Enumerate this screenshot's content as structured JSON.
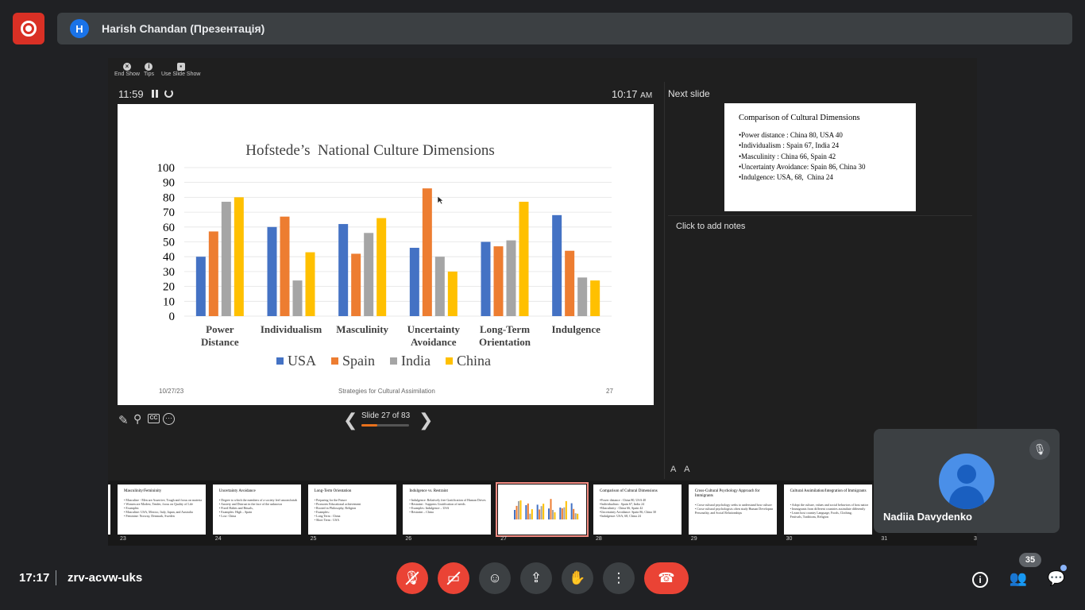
{
  "top_bar": {
    "presenter_initial": "H",
    "presenter_label": "Harish Chandan (Презентація)"
  },
  "presenter_view": {
    "tools": {
      "end_show": "End Show",
      "tips": "Tips",
      "use_slide_show": "Use Slide Show"
    },
    "timer": "11:59",
    "clock_time": "10:17",
    "clock_ampm": "AM",
    "next_slide_label": "Next slide",
    "notes_placeholder": "Click to add notes",
    "slide_counter": "Slide 27 of 83",
    "progress_fraction": 0.325,
    "font_controls": "A A"
  },
  "current_slide": {
    "footer_date": "10/27/23",
    "footer_center": "Strategies for Cultural Assimilation",
    "footer_page": "27"
  },
  "chart_data": {
    "type": "bar",
    "title": "Hofstede’s  National Culture Dimensions",
    "categories": [
      [
        "Power",
        "Distance"
      ],
      [
        "Individualism"
      ],
      [
        "Masculinity"
      ],
      [
        "Uncertainty",
        "Avoidance"
      ],
      [
        "Long-Term",
        "Orientation"
      ],
      [
        "Indulgence"
      ]
    ],
    "series": [
      {
        "name": "USA",
        "color": "#4472c4",
        "values": [
          40,
          60,
          62,
          46,
          50,
          68
        ]
      },
      {
        "name": "Spain",
        "color": "#ed7d31",
        "values": [
          57,
          67,
          42,
          86,
          47,
          44
        ]
      },
      {
        "name": "India",
        "color": "#a5a5a5",
        "values": [
          77,
          24,
          56,
          40,
          51,
          26
        ]
      },
      {
        "name": "China",
        "color": "#ffc000",
        "values": [
          80,
          43,
          66,
          30,
          77,
          24
        ]
      }
    ],
    "ylim": [
      0,
      100
    ],
    "yticks": [
      "0",
      "10",
      "20",
      "30",
      "40",
      "50",
      "60",
      "70",
      "80",
      "90",
      "100"
    ],
    "grid": true,
    "legend": "bottom"
  },
  "next_slide": {
    "title": "Comparison of Cultural Dimensions",
    "lines": [
      "•Power distance : China 80, USA 40",
      "•Individualism : Spain 67, India 24",
      "•Masculinity : China 66, Spain 42",
      "•Uncertainty Avoidance: Spain 86, China 30",
      "•Indulgence: USA, 68,  China 24"
    ]
  },
  "filmstrip": [
    {
      "num": "23",
      "title": "Masculinity/Femininity",
      "lines": [
        "• Masculine - Men are Assertive, Tough and focus on material success",
        "• Women are Modest, Tender, focus on Quality of Life",
        "• Examples:",
        "• Masculine: USA, Mexico, Italy, Japan, and Australia",
        "• Feminine: Norway, Denmark, Sweden"
      ]
    },
    {
      "num": "24",
      "title": "Uncertainty Avoidance",
      "lines": [
        "• Degree to which the members of a society feel uncomfortable with Change",
        "• Anxiety and Distrust in the face of the unknown",
        "• Fixed Habits and Rituals,",
        "• Examples: High – Spain",
        "• Low: China"
      ]
    },
    {
      "num": "25",
      "title": "Long-Term Orientation",
      "lines": [
        "• Preparing for the Future",
        "• Promotes Educational achievement",
        "• Rooted in Philosophy, Religion",
        "• Examples:",
        "• Long Term : China",
        "• Short Term : USA"
      ]
    },
    {
      "num": "26",
      "title": "Indulgence vs. Restraint",
      "lines": [
        "• Indulgence: Relatively free Gratification of Human Drives",
        "• Restraint : Suppress Gratification of needs",
        "• Examples: Indulgence – USA",
        "• Restraint – China"
      ]
    },
    {
      "num": "27",
      "title": "",
      "lines": []
    },
    {
      "num": "28",
      "title": "Comparison of Cultural Dimensions",
      "lines": [
        "•Power distance : China 80, USA 40",
        "•Individualism : Spain 67, India 24",
        "•Masculinity : China 66, Spain 42",
        "•Uncertainty Avoidance: Spain 86, China 30",
        "•Indulgence: USA, 68,  China 24"
      ]
    },
    {
      "num": "29",
      "title": "Cross-Cultural Psychology Approach for Immigrants",
      "lines": [
        "• Cross-cultural psychology seeks to understand how culture influences",
        "• Cross-cultural psychologists often study Human Development,",
        "  Personality, and Social Relationships"
      ]
    },
    {
      "num": "30",
      "title": "Cultural Assimilation/Integration  of Immigrants",
      "lines": [
        "• Adopt the culture, values and social behaviors of host nation",
        "• Immigrants from different countries assimilate differently",
        "• Learn host country Language, Foods, Clothing,",
        "  Festivals, Traditions, Religion"
      ]
    }
  ],
  "filmstrip_trailing_nums": [
    "31",
    "3"
  ],
  "self_tile": {
    "name": "Nadiia Davydenko"
  },
  "bottom_bar": {
    "time": "17:17",
    "meeting_code": "zrv-acvw-uks",
    "people_count": "35"
  }
}
